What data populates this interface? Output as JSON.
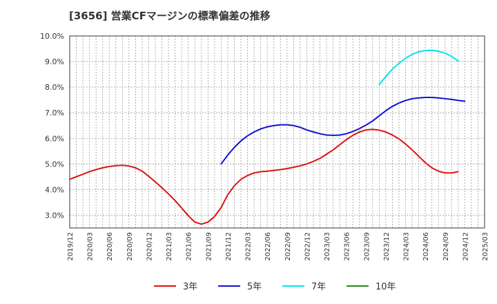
{
  "chart_data": {
    "type": "line",
    "title": "[3656]  営業CFマージンの標準偏差の推移",
    "xlabel": "",
    "ylabel": "",
    "y_tick_labels": [
      "3.0%",
      "4.0%",
      "5.0%",
      "6.0%",
      "7.0%",
      "8.0%",
      "9.0%",
      "10.0%"
    ],
    "y_tick_values": [
      3,
      4,
      5,
      6,
      7,
      8,
      9,
      10
    ],
    "ylim": [
      2.5,
      10.0
    ],
    "x_tick_labels": [
      "2019/12",
      "2020/03",
      "2020/06",
      "2020/09",
      "2020/12",
      "2021/03",
      "2021/06",
      "2021/09",
      "2021/12",
      "2022/03",
      "2022/06",
      "2022/09",
      "2022/12",
      "2023/03",
      "2023/06",
      "2023/09",
      "2023/12",
      "2024/03",
      "2024/06",
      "2024/09",
      "2024/12",
      "2025/03"
    ],
    "grid": true,
    "legend_position": "bottom",
    "series": [
      {
        "name": "3年",
        "color": "#dd1111",
        "start_index": 0,
        "values": [
          4.4,
          4.5,
          4.6,
          4.7,
          4.78,
          4.85,
          4.9,
          4.93,
          4.95,
          4.92,
          4.85,
          4.72,
          4.52,
          4.3,
          4.07,
          3.83,
          3.57,
          3.28,
          2.98,
          2.73,
          2.65,
          2.73,
          2.95,
          3.3,
          3.8,
          4.15,
          4.4,
          4.55,
          4.65,
          4.7,
          4.72,
          4.75,
          4.78,
          4.82,
          4.87,
          4.93,
          5.0,
          5.1,
          5.22,
          5.38,
          5.55,
          5.75,
          5.95,
          6.12,
          6.25,
          6.33,
          6.35,
          6.32,
          6.25,
          6.13,
          5.98,
          5.78,
          5.55,
          5.3,
          5.05,
          4.85,
          4.72,
          4.65,
          4.65,
          4.7
        ]
      },
      {
        "name": "5年",
        "color": "#1111cc",
        "start_index": 23,
        "values": [
          5.0,
          5.35,
          5.65,
          5.9,
          6.1,
          6.25,
          6.37,
          6.45,
          6.5,
          6.53,
          6.53,
          6.5,
          6.43,
          6.33,
          6.25,
          6.18,
          6.13,
          6.12,
          6.13,
          6.18,
          6.27,
          6.38,
          6.52,
          6.68,
          6.88,
          7.08,
          7.25,
          7.38,
          7.48,
          7.55,
          7.58,
          7.6,
          7.6,
          7.58,
          7.55,
          7.52,
          7.48,
          7.45
        ]
      },
      {
        "name": "7年",
        "color": "#00e5ee",
        "start_index": 47,
        "values": [
          8.1,
          8.42,
          8.7,
          8.93,
          9.13,
          9.28,
          9.38,
          9.43,
          9.44,
          9.4,
          9.33,
          9.2,
          9.02
        ]
      },
      {
        "name": "10年",
        "color": "#228822",
        "start_index": 0,
        "values": []
      }
    ]
  }
}
